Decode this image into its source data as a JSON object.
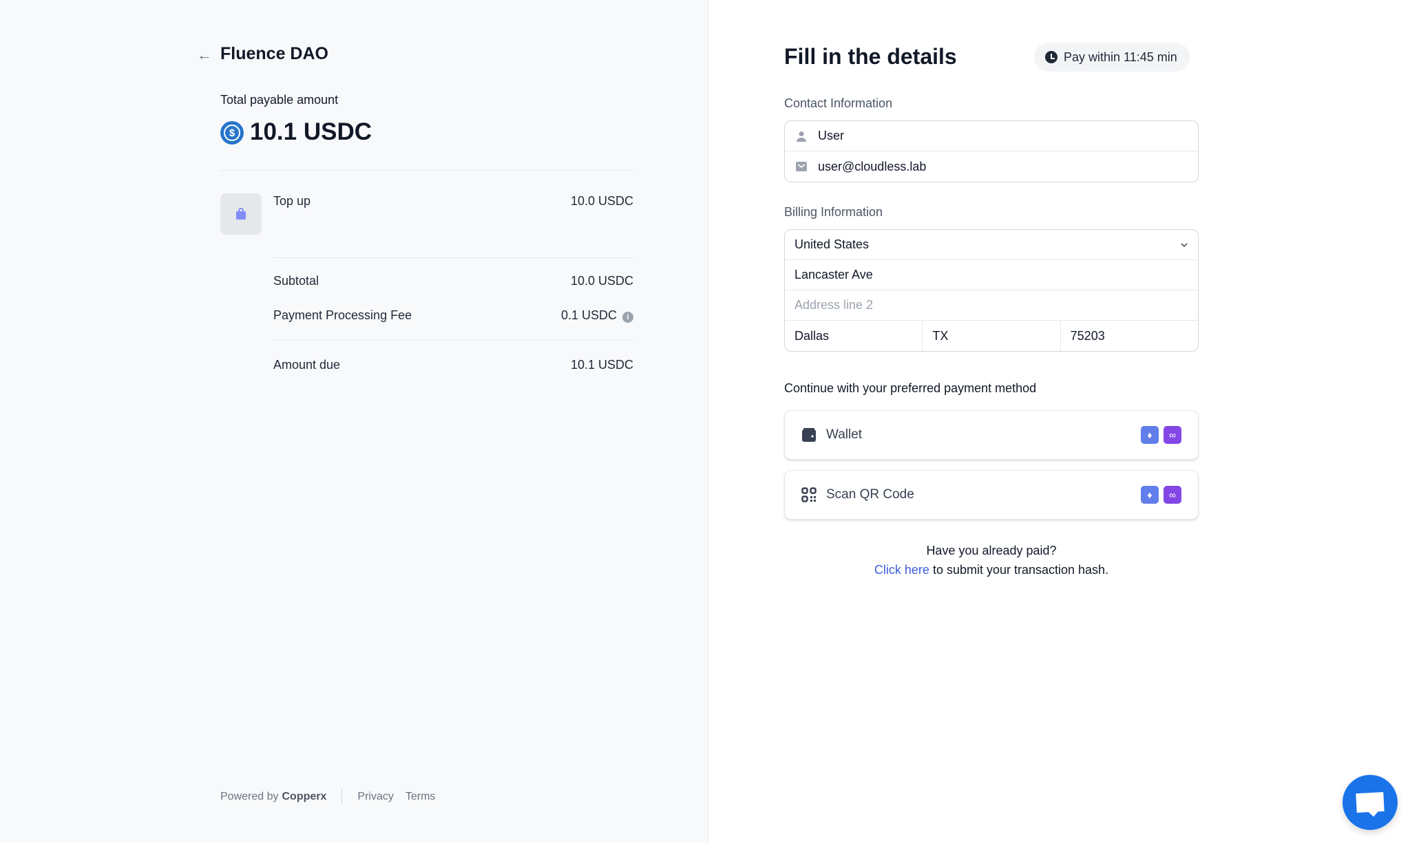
{
  "merchant": {
    "name": "Fluence DAO"
  },
  "summary": {
    "total_label": "Total payable amount",
    "total_amount": "10.1 USDC",
    "items": [
      {
        "name": "Top up",
        "price": "10.0 USDC"
      }
    ],
    "subtotal_label": "Subtotal",
    "subtotal": "10.0 USDC",
    "fee_label": "Payment Processing Fee",
    "fee": "0.1 USDC",
    "due_label": "Amount due",
    "due": "10.1 USDC"
  },
  "footer": {
    "powered_by": "Powered by",
    "brand": "Copperx",
    "privacy": "Privacy",
    "terms": "Terms"
  },
  "form": {
    "title": "Fill in the details",
    "timer": "Pay within 11:45 min",
    "contact_label": "Contact Information",
    "name": "User",
    "email": "user@cloudless.lab",
    "billing_label": "Billing Information",
    "country": "United States",
    "address1": "Lancaster Ave",
    "address2_placeholder": "Address line 2",
    "city": "Dallas",
    "state": "TX",
    "zip": "75203",
    "payment_label": "Continue with your preferred payment method",
    "methods": [
      {
        "label": "Wallet",
        "icon": "wallet-icon"
      },
      {
        "label": "Scan QR Code",
        "icon": "qr-code-icon"
      }
    ],
    "paid_question": "Have you already paid?",
    "click_here": "Click here",
    "submit_hash": " to submit your transaction hash."
  },
  "colors": {
    "accent": "#2775ca",
    "link": "#3b5bdb",
    "eth": "#627eea",
    "polygon": "#8247e5",
    "chat": "#1a73e8"
  }
}
